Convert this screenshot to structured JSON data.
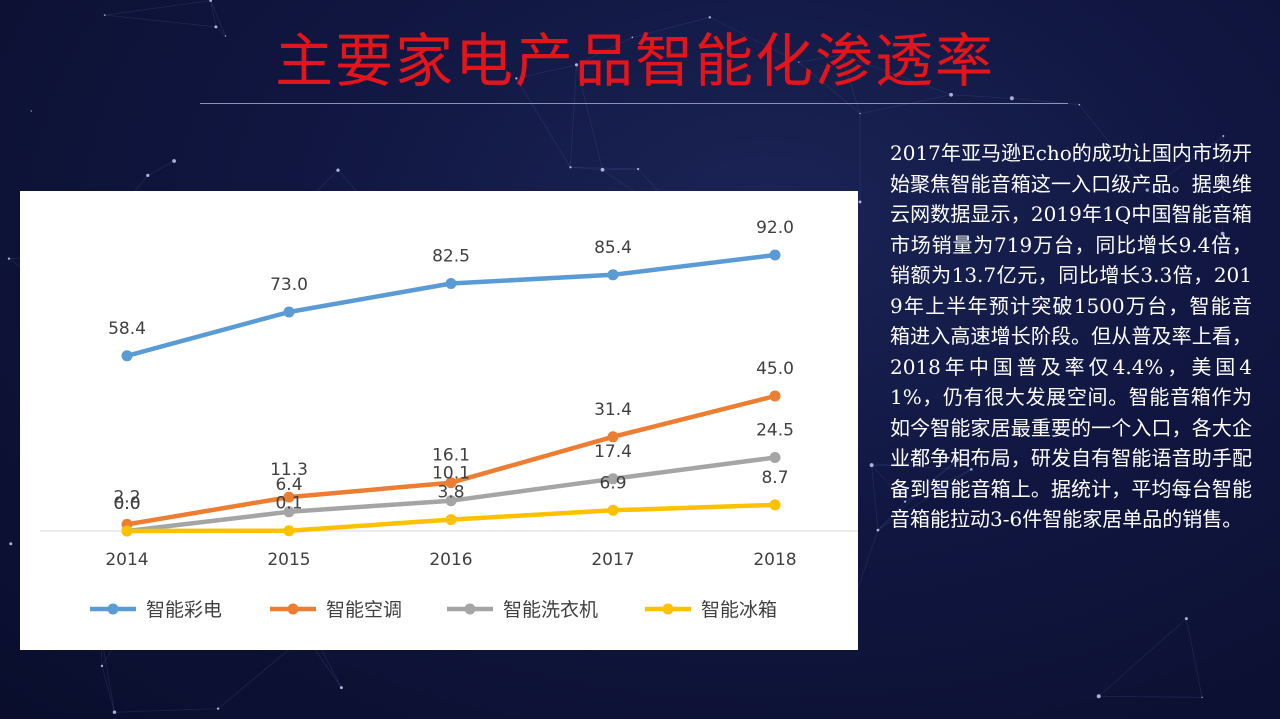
{
  "page": {
    "title": "主要家电产品智能化渗透率",
    "description": "2017年亚马逊Echo的成功让国内市场开始聚焦智能音箱这一入口级产品。据奥维云网数据显示，2019年1Q中国智能音箱市场销量为719万台，同比增长9.4倍，销额为13.7亿元，同比增长3.3倍，2019年上半年预计突破1500万台，智能音箱进入高速增长阶段。但从普及率上看，2018年中国普及率仅4.4%，美国41%，仍有很大发展空间。智能音箱作为如今智能家居最重要的一个入口，各大企业都争相布局，研发自有智能语音助手配备到智能音箱上。据统计，平均每台智能音箱能拉动3-6件智能家居单品的销售。"
  },
  "colors": {
    "background": "#101640",
    "title": "#e4141b",
    "text": "#ffffff",
    "panel": "#ffffff"
  },
  "chart_data": {
    "type": "line",
    "title": "",
    "xlabel": "",
    "ylabel": "",
    "categories": [
      "2014",
      "2015",
      "2016",
      "2017",
      "2018"
    ],
    "ylim": [
      0,
      100
    ],
    "grid": false,
    "legend_position": "bottom",
    "series": [
      {
        "name": "智能彩电",
        "color": "#5b9bd5",
        "values": [
          58.4,
          73.0,
          82.5,
          85.4,
          92.0
        ],
        "labels": [
          "58.4",
          "73.0",
          "82.5",
          "85.4",
          "92.0"
        ]
      },
      {
        "name": "智能空调",
        "color": "#ed7d31",
        "values": [
          2.2,
          11.3,
          16.1,
          31.4,
          45.0
        ],
        "labels": [
          "2.2",
          "11.3",
          "16.1",
          "31.4",
          "45.0"
        ]
      },
      {
        "name": "智能洗衣机",
        "color": "#a5a5a5",
        "values": [
          0.0,
          6.4,
          10.1,
          17.4,
          24.5
        ],
        "labels": [
          "0.0",
          "6.4",
          "10.1",
          "17.4",
          "24.5"
        ]
      },
      {
        "name": "智能冰箱",
        "color": "#ffc000",
        "values": [
          0.0,
          0.1,
          3.8,
          6.9,
          8.7
        ],
        "labels": [
          "0.0",
          "0.1",
          "3.8",
          "6.9",
          "8.7"
        ]
      }
    ]
  }
}
